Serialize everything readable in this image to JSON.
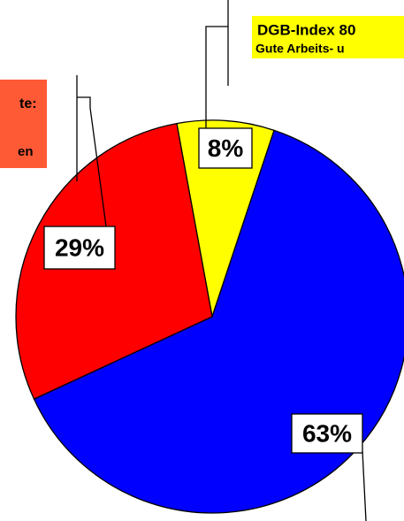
{
  "chart_data": {
    "type": "pie",
    "values": [
      8,
      63,
      29
    ],
    "value_labels": [
      "8%",
      "63%",
      "29%"
    ],
    "colors": [
      "#ffff00",
      "#0000ff",
      "#ff0000"
    ],
    "annotations": [
      "DGB-Index 80",
      "Gute Arbeits- u",
      "te:",
      "en"
    ]
  }
}
